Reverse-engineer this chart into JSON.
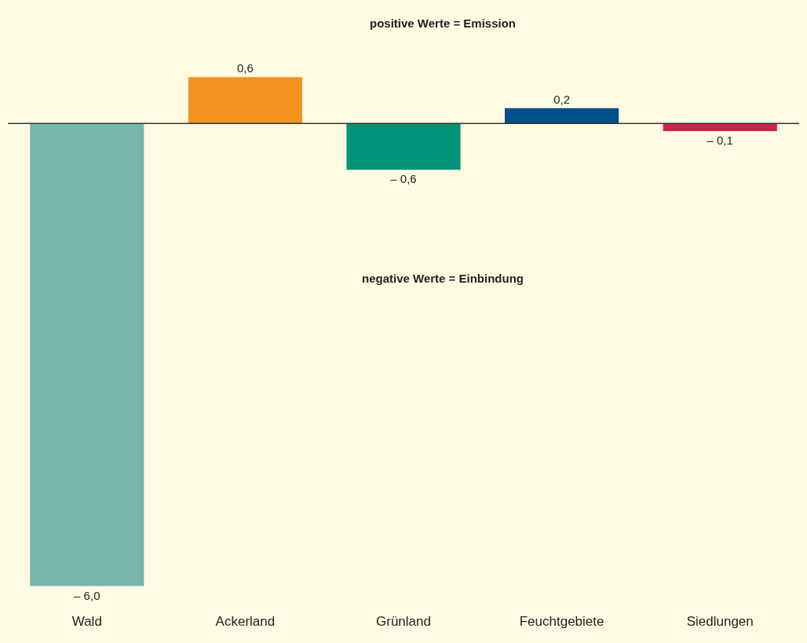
{
  "chart_data": {
    "type": "bar",
    "categories": [
      "Wald",
      "Ackerland",
      "Grünland",
      "Feuchtgebiete",
      "Siedlungen"
    ],
    "values": [
      -6.0,
      0.6,
      -0.6,
      0.2,
      -0.1
    ],
    "colors": [
      "#79b6ab",
      "#f39420",
      "#009479",
      "#004f8a",
      "#c8254a"
    ],
    "value_labels": [
      "– 6,0",
      "0,6",
      "– 0,6",
      "0,2",
      "– 0,1"
    ],
    "annotations": [
      "positive Werte = Emission",
      "negative Werte = Einbindung"
    ]
  }
}
